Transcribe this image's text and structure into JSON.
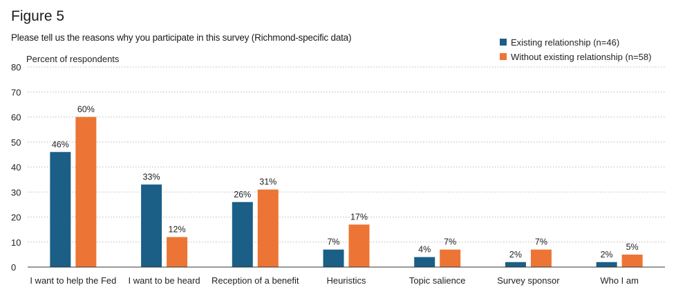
{
  "figure_label": "Figure 5",
  "chart_data": {
    "type": "bar",
    "title": "Please tell us the reasons why you participate in this survey (Richmond-specific data)",
    "ylabel": "Percent of respondents",
    "xlabel": "",
    "ylim": [
      0,
      80
    ],
    "yticks": [
      0,
      10,
      20,
      30,
      40,
      50,
      60,
      70,
      80
    ],
    "grid": true,
    "legend_position": "top-right",
    "categories": [
      "I want to help the Fed",
      "I want to be heard",
      "Reception of a benefit",
      "Heuristics",
      "Topic salience",
      "Survey sponsor",
      "Who I am"
    ],
    "series": [
      {
        "name": "Existing relationship (n=46)",
        "color": "#1b5e86",
        "values": [
          46,
          33,
          26,
          7,
          4,
          2,
          2
        ],
        "labels": [
          "46%",
          "33%",
          "26%",
          "7%",
          "4%",
          "2%",
          "2%"
        ]
      },
      {
        "name": "Without existing relationship (n=58)",
        "color": "#ec7535",
        "values": [
          60,
          12,
          31,
          17,
          7,
          7,
          5
        ],
        "labels": [
          "60%",
          "12%",
          "31%",
          "17%",
          "7%",
          "7%",
          "5%"
        ]
      }
    ]
  }
}
